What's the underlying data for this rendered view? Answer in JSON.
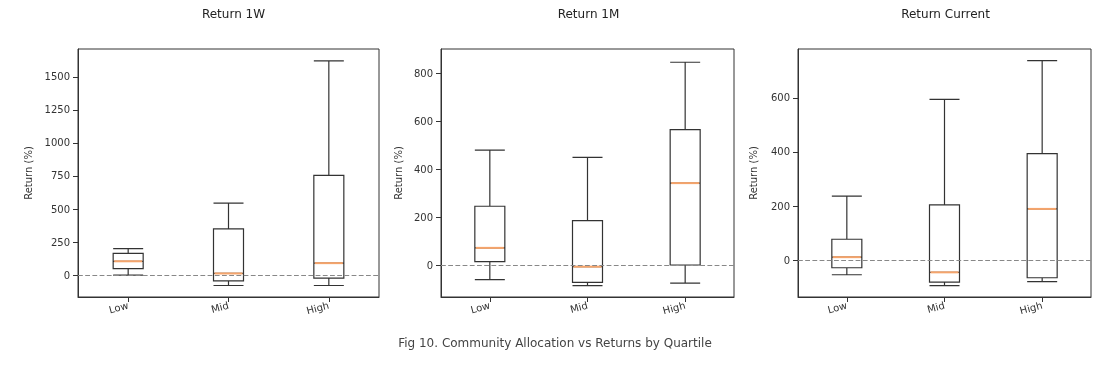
{
  "chart_data": [
    {
      "type": "box",
      "title": "Return 1W",
      "ylabel": "Return (%)",
      "categories": [
        "Low",
        "Mid",
        "High"
      ],
      "color": "#333333",
      "ylim": [
        -165,
        1710
      ],
      "yticks": [
        0,
        250,
        500,
        750,
        1000,
        1250,
        1500
      ],
      "boxes": [
        {
          "low": 0,
          "q1": 50,
          "median": 105,
          "q3": 165,
          "high": 200
        },
        {
          "low": -78,
          "q1": -43,
          "median": 13,
          "q3": 350,
          "high": 545
        },
        {
          "low": -78,
          "q1": -23,
          "median": 91,
          "q3": 755,
          "high": 1620
        }
      ],
      "ref_lines": [
        {
          "axis": "y",
          "value": 0,
          "color": "#888888",
          "line_style": "dashed"
        }
      ],
      "annotations": [
        "Fig 10. Community Allocation vs Returns by Quartile"
      ]
    },
    {
      "type": "box",
      "title": "Return 1M",
      "ylabel": "Return (%)",
      "categories": [
        "Low",
        "Mid",
        "High"
      ],
      "color": "#333333",
      "ylim": [
        -130,
        900
      ],
      "yticks": [
        0,
        200,
        400,
        600,
        800
      ],
      "boxes": [
        {
          "low": -58,
          "q1": 17,
          "median": 74,
          "q3": 247,
          "high": 480
        },
        {
          "low": -83,
          "q1": -69,
          "median": -4,
          "q3": 187,
          "high": 450
        },
        {
          "low": -72,
          "q1": 3,
          "median": 343,
          "q3": 565,
          "high": 845
        }
      ],
      "ref_lines": [
        {
          "axis": "y",
          "value": 0,
          "color": "#888888",
          "line_style": "dashed"
        }
      ]
    },
    {
      "type": "box",
      "title": "Return Current",
      "ylabel": "Return (%)",
      "categories": [
        "Low",
        "Mid",
        "High"
      ],
      "color": "#333333",
      "ylim": [
        -135,
        780
      ],
      "yticks": [
        0,
        200,
        400,
        600
      ],
      "boxes": [
        {
          "low": -53,
          "q1": -27,
          "median": 12,
          "q3": 78,
          "high": 237
        },
        {
          "low": -93,
          "q1": -80,
          "median": -44,
          "q3": 205,
          "high": 594
        },
        {
          "low": -78,
          "q1": -64,
          "median": 190,
          "q3": 394,
          "high": 737
        }
      ],
      "ref_lines": [
        {
          "axis": "y",
          "value": 0,
          "color": "#888888",
          "line_style": "dashed"
        }
      ]
    }
  ]
}
